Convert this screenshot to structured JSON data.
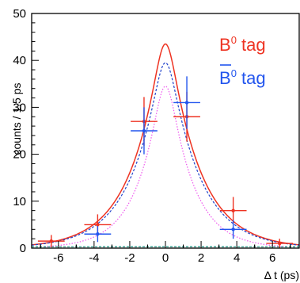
{
  "chart_data": {
    "type": "scatter",
    "title": "",
    "xlabel": "Δ t (ps)",
    "ylabel": "counts / 1.5 ps",
    "xlim": [
      -7.5,
      7.5
    ],
    "ylim": [
      0,
      50
    ],
    "x_ticks": [
      -6,
      -4,
      -2,
      0,
      2,
      4,
      6
    ],
    "y_ticks": [
      0,
      10,
      20,
      30,
      40,
      50
    ],
    "grid": false,
    "legend_position": "top-right",
    "series": [
      {
        "name": "B0 tag",
        "legend_main": "B",
        "legend_sup": "0",
        "legend_rest": " tag",
        "color": "#ee3322",
        "points": [
          {
            "x": -6.4,
            "y": 1.5,
            "xerr": 0.75,
            "yerr": 1.3
          },
          {
            "x": -3.8,
            "y": 5.0,
            "xerr": 0.75,
            "yerr": 2.2
          },
          {
            "x": -1.2,
            "y": 27.0,
            "xerr": 0.75,
            "yerr": 5.2
          },
          {
            "x": 1.2,
            "y": 28.0,
            "xerr": 0.75,
            "yerr": 5.3
          },
          {
            "x": 3.8,
            "y": 8.0,
            "xerr": 0.75,
            "yerr": 2.9
          },
          {
            "x": 6.4,
            "y": 1.0,
            "xerr": 0.75,
            "yerr": 1.0
          }
        ]
      },
      {
        "name": "B̄0 tag",
        "legend_main": "B",
        "legend_sup": "0",
        "legend_rest": " tag",
        "color": "#2255ee",
        "points": [
          {
            "x": -3.8,
            "y": 3.0,
            "xerr": 0.75,
            "yerr": 1.7
          },
          {
            "x": -1.2,
            "y": 25.0,
            "xerr": 0.75,
            "yerr": 5.0
          },
          {
            "x": 1.2,
            "y": 31.0,
            "xerr": 0.75,
            "yerr": 5.6
          },
          {
            "x": 3.8,
            "y": 4.0,
            "xerr": 0.75,
            "yerr": 2.0
          }
        ]
      }
    ],
    "curves": [
      {
        "role": "B0 tag fit",
        "color": "#ee3322",
        "style": "solid",
        "peak": 43.5,
        "tau": 1.75,
        "sigma": 0.3,
        "xmin": -7.5,
        "xmax": 7.5
      },
      {
        "role": "anti-B0 tag fit",
        "color": "#2244cc",
        "style": "dashed",
        "peak": 39.5,
        "tau": 1.75,
        "sigma": 0.3,
        "xmin": -7.5,
        "xmax": 7.5
      },
      {
        "role": "signal component",
        "color": "#ee55ee",
        "style": "dotted",
        "peak": 34.5,
        "tau": 1.4,
        "sigma": 0.3,
        "xmin": -6.8,
        "xmax": 6.8
      },
      {
        "role": "background",
        "color": "#229988",
        "style": "dashed",
        "peak": 0.3,
        "tau": 100,
        "sigma": 0.3,
        "xmin": -7.5,
        "xmax": 7.5
      }
    ]
  }
}
